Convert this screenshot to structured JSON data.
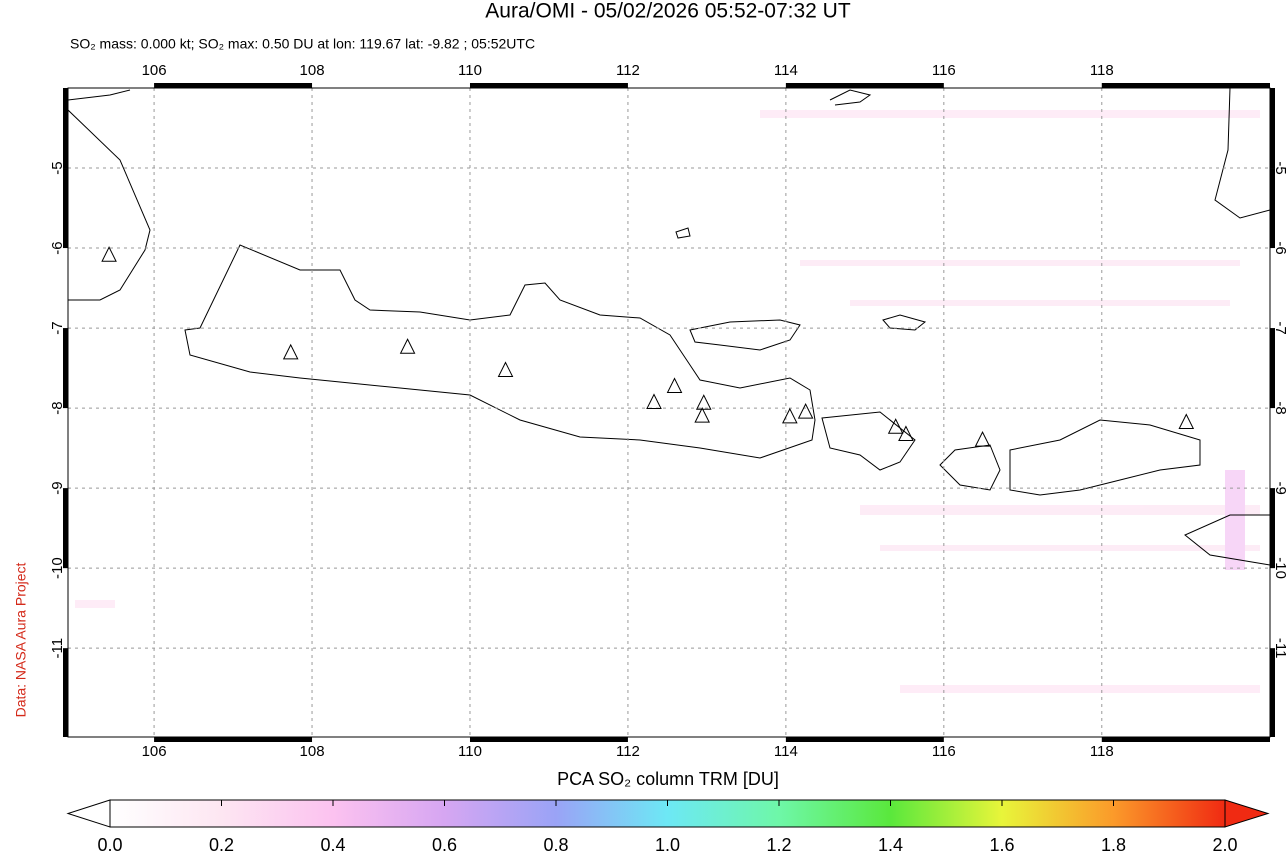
{
  "title": "Aura/OMI - 05/02/2026 05:52-07:32 UT",
  "subtitle": "SO₂ mass: 0.000 kt; SO₂ max: 0.50 DU at lon: 119.67 lat: -9.82 ; 05:52UTC",
  "credit": "Data: NASA Aura Project",
  "map": {
    "xlim": [
      104.91,
      120.13
    ],
    "ylim": [
      -12.11,
      -4.0
    ],
    "xticks": [
      106,
      108,
      110,
      112,
      114,
      116,
      118
    ],
    "yticks": [
      -5,
      -6,
      -7,
      -8,
      -9,
      -10,
      -11
    ],
    "grid": true,
    "volcanoes": {
      "lon": [
        105.43,
        107.73,
        109.21,
        110.45,
        112.33,
        112.59,
        112.96,
        112.94,
        114.05,
        114.25,
        115.39,
        115.52,
        116.49,
        119.07
      ],
      "lat": [
        -6.09,
        -7.31,
        -7.24,
        -7.53,
        -7.93,
        -7.73,
        -7.94,
        -8.1,
        -8.11,
        -8.05,
        -8.24,
        -8.33,
        -8.4,
        -8.18
      ]
    }
  },
  "colorbar": {
    "label": "PCA SO₂ column TRM [DU]",
    "lim": [
      0,
      2
    ],
    "ticks": [
      {
        "value": 0,
        "label": "0.0"
      },
      {
        "value": 0.2,
        "label": "0.2"
      },
      {
        "value": 0.4,
        "label": "0.4"
      },
      {
        "value": 0.6,
        "label": "0.6"
      },
      {
        "value": 0.8,
        "label": "0.8"
      },
      {
        "value": 1,
        "label": "1.0"
      },
      {
        "value": 1.2,
        "label": "1.2"
      },
      {
        "value": 1.4,
        "label": "1.4"
      },
      {
        "value": 1.6,
        "label": "1.6"
      },
      {
        "value": 1.8,
        "label": "1.8"
      },
      {
        "value": 2,
        "label": "2.0"
      }
    ]
  }
}
